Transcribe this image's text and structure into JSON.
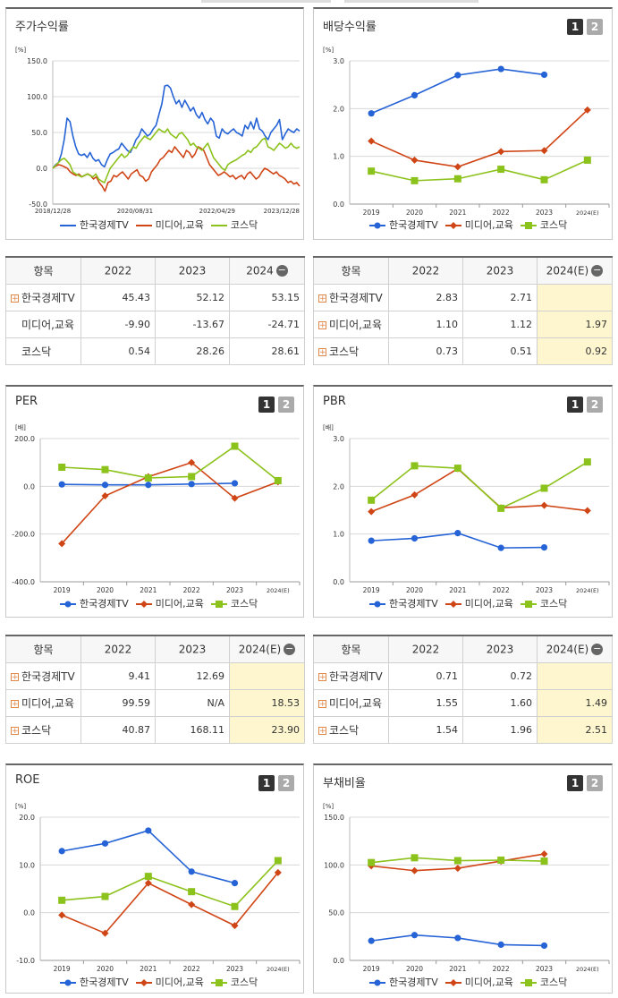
{
  "legend_names": [
    "한국경제TV",
    "미디어,교육",
    "코스닥"
  ],
  "colors": {
    "s1": "#2563d6",
    "s2": "#d04515",
    "s3": "#8cc21c"
  },
  "tabs": [
    "1",
    "2"
  ],
  "stock": {
    "title": "주가수익률",
    "unit": "[%]",
    "chart_data": {
      "type": "line",
      "title": "주가수익률",
      "ylabel": "[%]",
      "ylim": [
        -50,
        150
      ],
      "ytick_labels": [
        "150.0",
        "100.0",
        "50.0",
        "0.0",
        "-50.0"
      ],
      "yticks": [
        150,
        100,
        50,
        0,
        -50
      ],
      "xtick_labels": [
        "2018/12/28",
        "2020/08/31",
        "2022/04/29",
        "2023/12/28"
      ],
      "xtick_positions": [
        0,
        0.333,
        0.666,
        1.0
      ],
      "series": [
        {
          "name": "한국경제TV",
          "values": [
            0,
            5,
            8,
            20,
            40,
            70,
            65,
            45,
            30,
            20,
            18,
            20,
            15,
            22,
            14,
            10,
            12,
            5,
            2,
            12,
            20,
            22,
            25,
            27,
            35,
            30,
            25,
            22,
            30,
            40,
            45,
            55,
            50,
            45,
            48,
            55,
            60,
            75,
            90,
            115,
            116,
            112,
            100,
            90,
            95,
            85,
            95,
            88,
            80,
            85,
            75,
            70,
            78,
            68,
            62,
            70,
            65,
            45,
            42,
            55,
            50,
            48,
            52,
            55,
            50,
            48,
            45,
            60,
            55,
            65,
            55,
            70,
            55,
            52,
            45,
            40,
            50,
            55,
            60,
            68,
            40,
            48,
            55,
            52,
            50,
            55,
            52
          ]
        },
        {
          "name": "미디어,교육",
          "values": [
            0,
            3,
            5,
            4,
            2,
            0,
            -5,
            -8,
            -10,
            -8,
            -12,
            -10,
            -8,
            -10,
            -15,
            -12,
            -20,
            -25,
            -32,
            -20,
            -18,
            -10,
            -12,
            -8,
            -5,
            -10,
            -15,
            -8,
            -5,
            -2,
            -10,
            -12,
            -18,
            -15,
            -5,
            0,
            5,
            12,
            15,
            20,
            25,
            22,
            30,
            25,
            20,
            15,
            25,
            22,
            15,
            20,
            30,
            28,
            25,
            15,
            5,
            0,
            -5,
            -10,
            -8,
            -5,
            -8,
            -12,
            -10,
            -15,
            -12,
            -10,
            -15,
            -8,
            -5,
            -10,
            -15,
            -12,
            -5,
            0,
            -2,
            -5,
            -8,
            -5,
            -10,
            -12,
            -15,
            -20,
            -18,
            -22,
            -20,
            -25
          ]
        },
        {
          "name": "코스닥",
          "values": [
            0,
            4,
            8,
            12,
            14,
            10,
            5,
            -5,
            -8,
            -10,
            -12,
            -10,
            -8,
            -10,
            -12,
            -8,
            -15,
            -18,
            -20,
            -10,
            0,
            5,
            10,
            15,
            20,
            15,
            18,
            25,
            30,
            28,
            35,
            40,
            45,
            42,
            40,
            45,
            50,
            55,
            52,
            50,
            55,
            48,
            45,
            42,
            48,
            50,
            45,
            40,
            32,
            35,
            30,
            28,
            25,
            30,
            35,
            25,
            15,
            10,
            5,
            0,
            -3,
            5,
            8,
            10,
            12,
            15,
            18,
            20,
            25,
            22,
            28,
            30,
            35,
            40,
            42,
            30,
            28,
            25,
            30,
            35,
            32,
            28,
            30,
            35,
            30,
            28,
            30
          ]
        }
      ]
    }
  },
  "dividend": {
    "title": "배당수익률",
    "unit": "[%]",
    "chart_data": {
      "type": "line",
      "title": "배당수익률",
      "ylabel": "[%]",
      "categories": [
        "2019",
        "2020",
        "2021",
        "2022",
        "2023",
        "2024(E)"
      ],
      "ylim": [
        0,
        3
      ],
      "ytick_labels": [
        "3.0",
        "2.0",
        "1.0",
        "0.0"
      ],
      "yticks": [
        3,
        2,
        1,
        0
      ],
      "series": [
        {
          "name": "한국경제TV",
          "values": [
            1.9,
            2.28,
            2.7,
            2.83,
            2.71,
            null
          ]
        },
        {
          "name": "미디어,교육",
          "values": [
            1.32,
            0.92,
            0.78,
            1.1,
            1.12,
            1.97
          ]
        },
        {
          "name": "코스닥",
          "values": [
            0.69,
            0.49,
            0.53,
            0.73,
            0.51,
            0.92
          ]
        }
      ]
    }
  },
  "per": {
    "title": "PER",
    "unit": "[배]",
    "chart_data": {
      "type": "line",
      "title": "PER",
      "ylabel": "[배]",
      "categories": [
        "2019",
        "2020",
        "2021",
        "2022",
        "2023",
        "2024(E)"
      ],
      "ylim": [
        -400,
        200
      ],
      "ytick_labels": [
        "200.0",
        "0.0",
        "-200.0",
        "-400.0"
      ],
      "yticks": [
        200,
        0,
        -200,
        -400
      ],
      "series": [
        {
          "name": "한국경제TV",
          "values": [
            8,
            6,
            6,
            9.41,
            12.69,
            null
          ]
        },
        {
          "name": "미디어,교육",
          "values": [
            -240,
            -40,
            40,
            99.59,
            -50,
            18.53
          ]
        },
        {
          "name": "코스닥",
          "values": [
            80,
            70,
            35,
            40.87,
            168.11,
            23.9
          ]
        }
      ]
    }
  },
  "pbr": {
    "title": "PBR",
    "unit": "[배]",
    "chart_data": {
      "type": "line",
      "title": "PBR",
      "ylabel": "[배]",
      "categories": [
        "2019",
        "2020",
        "2021",
        "2022",
        "2023",
        "2024(E)"
      ],
      "ylim": [
        0,
        3
      ],
      "ytick_labels": [
        "3.0",
        "2.0",
        "1.0",
        "0.0"
      ],
      "yticks": [
        3,
        2,
        1,
        0
      ],
      "series": [
        {
          "name": "한국경제TV",
          "values": [
            0.86,
            0.91,
            1.02,
            0.71,
            0.72,
            null
          ]
        },
        {
          "name": "미디어,교육",
          "values": [
            1.47,
            1.82,
            2.37,
            1.55,
            1.6,
            1.49
          ]
        },
        {
          "name": "코스닥",
          "values": [
            1.71,
            2.43,
            2.38,
            1.54,
            1.96,
            2.51
          ]
        }
      ]
    }
  },
  "roe": {
    "title": "ROE",
    "unit": "[%]",
    "chart_data": {
      "type": "line",
      "title": "ROE",
      "ylabel": "[%]",
      "categories": [
        "2019",
        "2020",
        "2021",
        "2022",
        "2023",
        "2024(E)"
      ],
      "ylim": [
        -10,
        20
      ],
      "ytick_labels": [
        "20.0",
        "10.0",
        "0.0",
        "-10.0"
      ],
      "yticks": [
        20,
        10,
        0,
        -10
      ],
      "series": [
        {
          "name": "한국경제TV",
          "values": [
            12.9,
            14.5,
            17.2,
            8.6,
            6.2,
            null
          ]
        },
        {
          "name": "미디어,교육",
          "values": [
            -0.5,
            -4.3,
            6.2,
            1.7,
            -2.7,
            8.4
          ]
        },
        {
          "name": "코스닥",
          "values": [
            2.6,
            3.4,
            7.6,
            4.4,
            1.3,
            10.9
          ]
        }
      ]
    }
  },
  "debt": {
    "title": "부채비율",
    "unit": "[%]",
    "chart_data": {
      "type": "line",
      "title": "부채비율",
      "ylabel": "[%]",
      "categories": [
        "2019",
        "2020",
        "2021",
        "2022",
        "2023",
        "2024(E)"
      ],
      "ylim": [
        0,
        150
      ],
      "ytick_labels": [
        "150.0",
        "100.0",
        "50.0",
        "0.0"
      ],
      "yticks": [
        150,
        100,
        50,
        0
      ],
      "series": [
        {
          "name": "한국경제TV",
          "values": [
            20.5,
            26.5,
            23.5,
            16.5,
            15.5,
            null
          ]
        },
        {
          "name": "미디어,교육",
          "values": [
            99,
            94,
            96.5,
            104,
            111.5,
            null
          ]
        },
        {
          "name": "코스닥",
          "values": [
            102.5,
            107.5,
            104.5,
            105,
            104,
            null
          ]
        }
      ]
    }
  },
  "tables": {
    "stock_tbl": {
      "headers": [
        "항목",
        "2022",
        "2023",
        "2024"
      ],
      "rows": [
        {
          "name": "한국경제TV",
          "plus": true,
          "v": [
            "45.43",
            "52.12",
            "53.15"
          ]
        },
        {
          "name": "미디어,교육",
          "plus": false,
          "v": [
            "-9.90",
            "-13.67",
            "-24.71"
          ]
        },
        {
          "name": "코스닥",
          "plus": false,
          "v": [
            "0.54",
            "28.26",
            "28.61"
          ]
        }
      ]
    },
    "div_tbl": {
      "headers": [
        "항목",
        "2022",
        "2023",
        "2024(E)"
      ],
      "rows": [
        {
          "name": "한국경제TV",
          "plus": true,
          "v": [
            "2.83",
            "2.71",
            ""
          ]
        },
        {
          "name": "미디어,교육",
          "plus": true,
          "v": [
            "1.10",
            "1.12",
            "1.97"
          ]
        },
        {
          "name": "코스닥",
          "plus": true,
          "v": [
            "0.73",
            "0.51",
            "0.92"
          ]
        }
      ]
    },
    "per_tbl": {
      "headers": [
        "항목",
        "2022",
        "2023",
        "2024(E)"
      ],
      "rows": [
        {
          "name": "한국경제TV",
          "plus": true,
          "v": [
            "9.41",
            "12.69",
            ""
          ]
        },
        {
          "name": "미디어,교육",
          "plus": true,
          "v": [
            "99.59",
            "N/A",
            "18.53"
          ]
        },
        {
          "name": "코스닥",
          "plus": true,
          "v": [
            "40.87",
            "168.11",
            "23.90"
          ]
        }
      ]
    },
    "pbr_tbl": {
      "headers": [
        "항목",
        "2022",
        "2023",
        "2024(E)"
      ],
      "rows": [
        {
          "name": "한국경제TV",
          "plus": true,
          "v": [
            "0.71",
            "0.72",
            ""
          ]
        },
        {
          "name": "미디어,교육",
          "plus": true,
          "v": [
            "1.55",
            "1.60",
            "1.49"
          ]
        },
        {
          "name": "코스닥",
          "plus": true,
          "v": [
            "1.54",
            "1.96",
            "2.51"
          ]
        }
      ]
    }
  }
}
